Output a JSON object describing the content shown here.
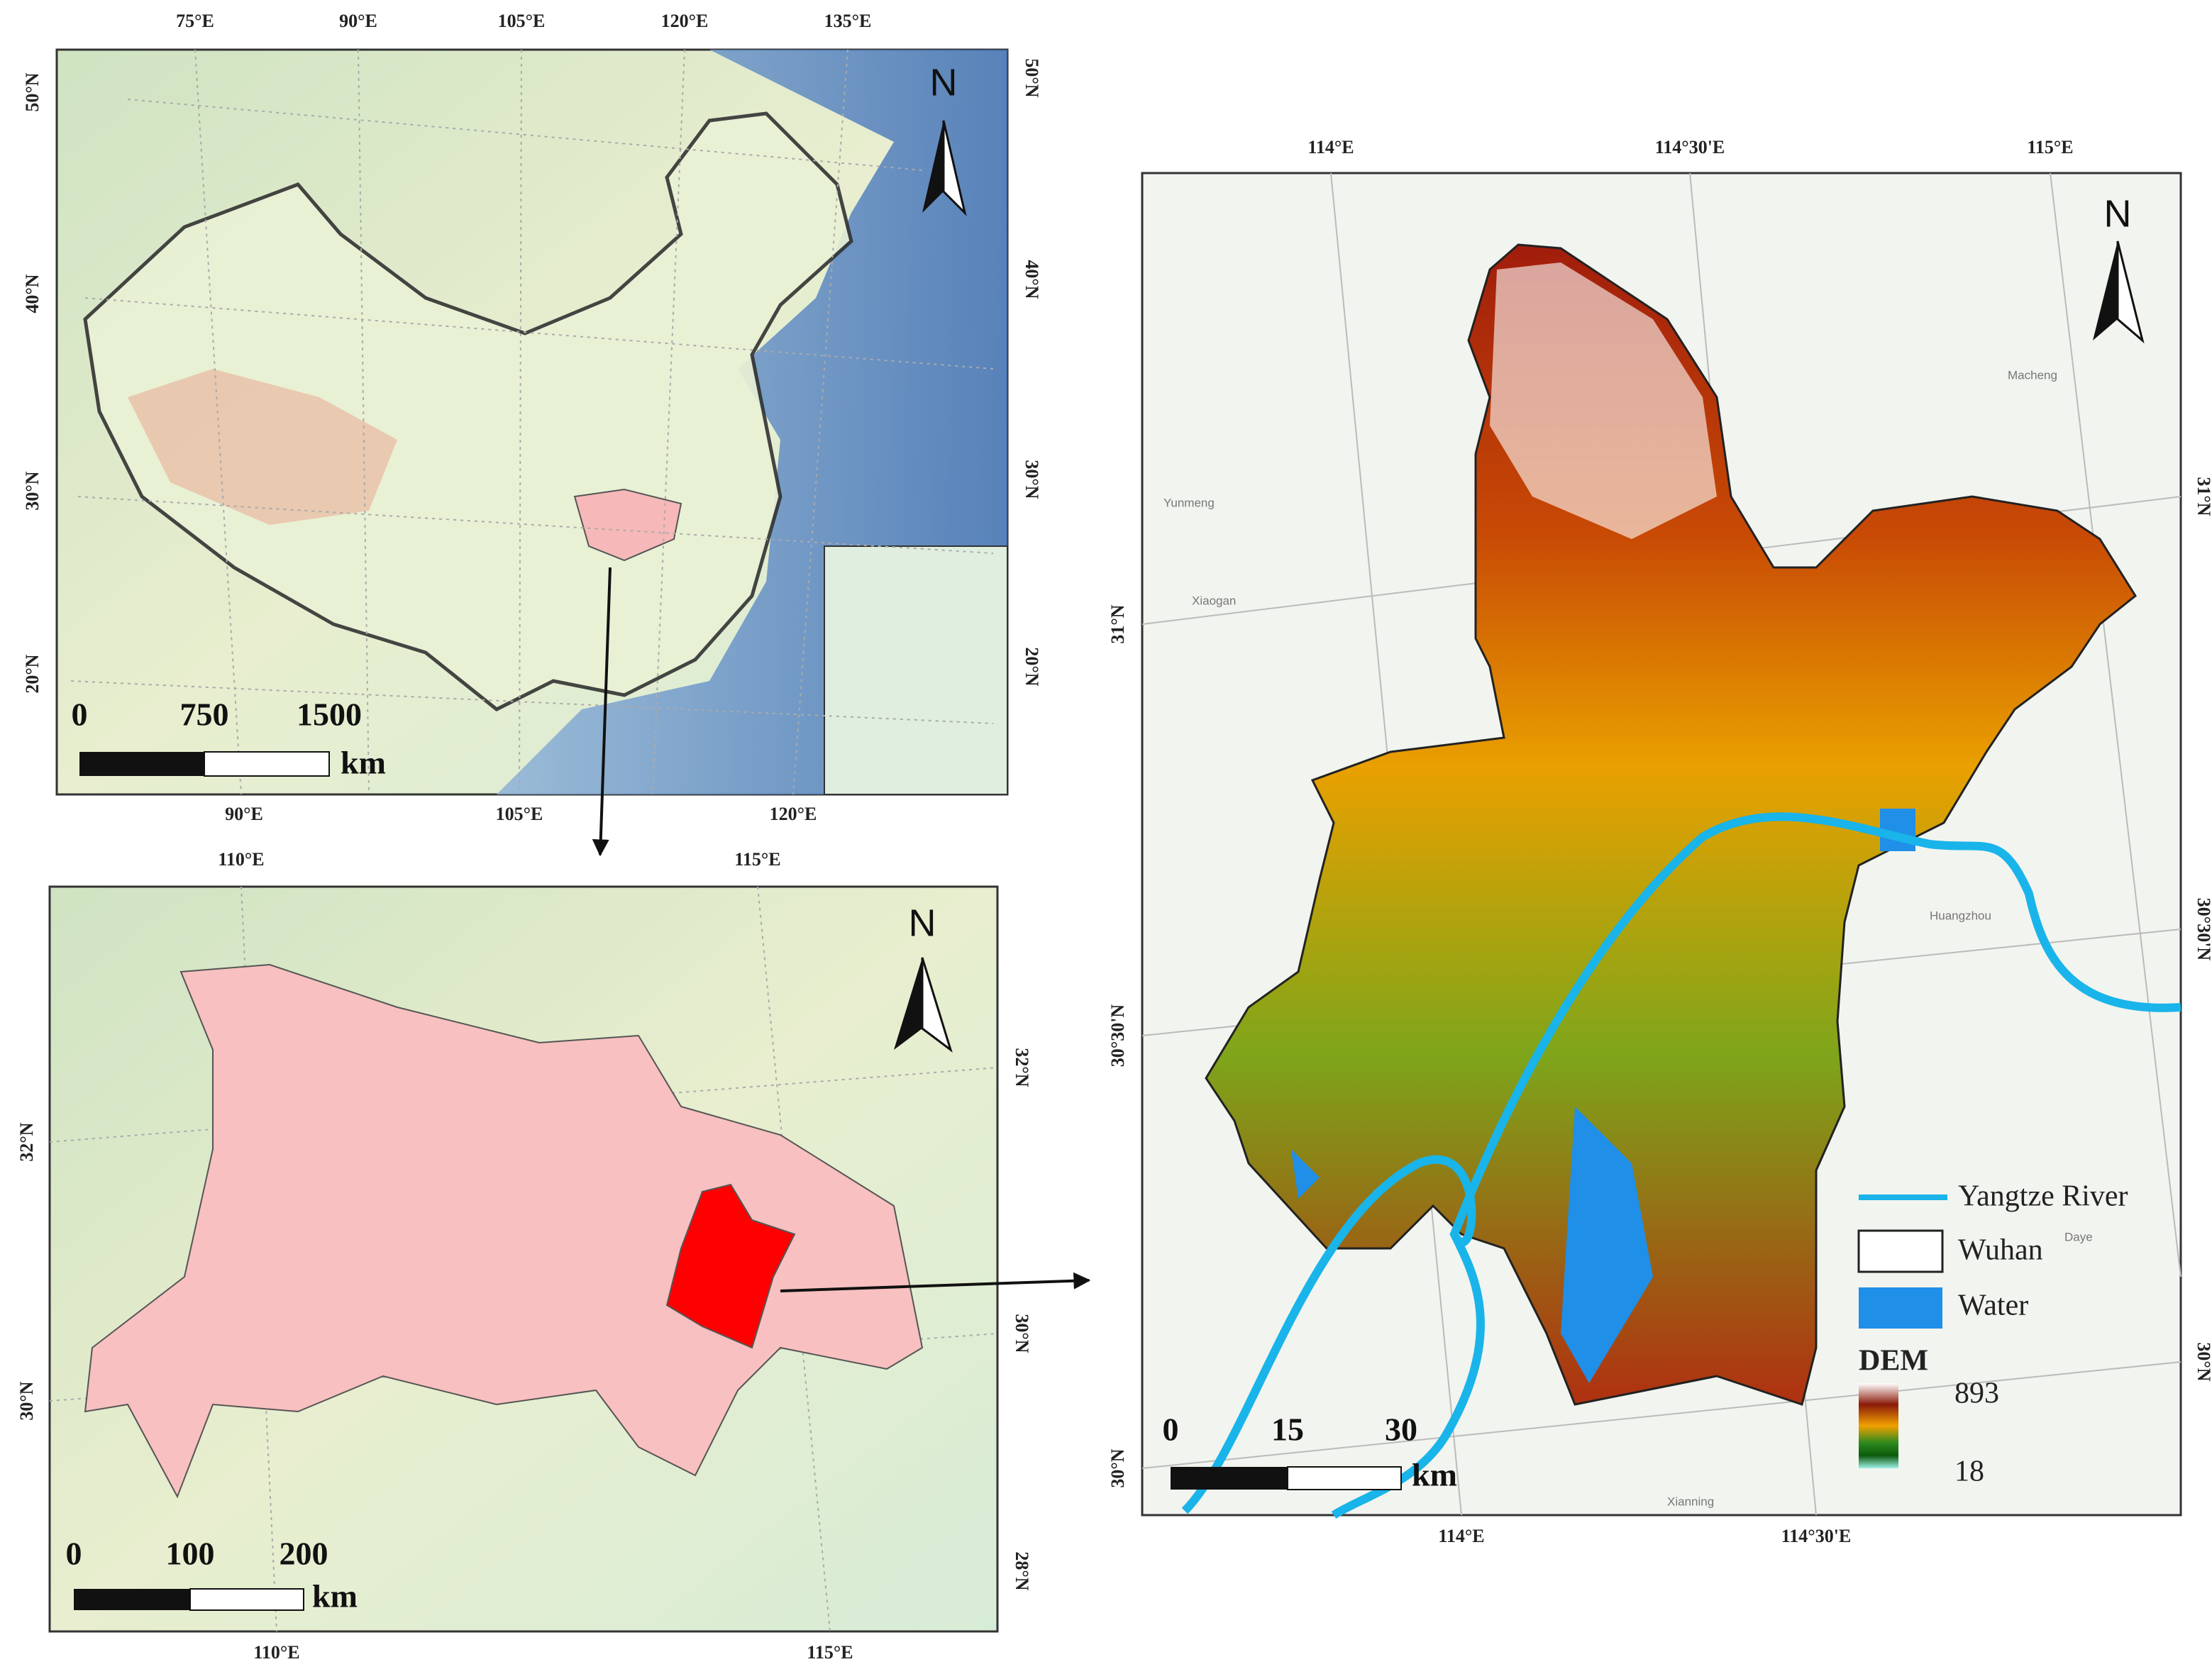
{
  "china_map": {
    "top_labels": [
      "75°E",
      "90°E",
      "105°E",
      "120°E",
      "135°E"
    ],
    "bottom_labels": [
      "90°E",
      "105°E",
      "120°E"
    ],
    "left_labels": [
      "50°N",
      "40°N",
      "30°N",
      "20°N"
    ],
    "right_labels": [
      "50°N",
      "40°N",
      "30°N",
      "20°N"
    ],
    "north": "N",
    "scale": {
      "ticks": [
        "0",
        "750",
        "1500"
      ],
      "unit": "km"
    }
  },
  "hubei_map": {
    "top_labels": [
      "110°E",
      "115°E"
    ],
    "bottom_labels": [
      "110°E",
      "115°E"
    ],
    "left_labels": [
      "32°N",
      "30°N"
    ],
    "right_labels": [
      "32°N",
      "30°N",
      "28°N"
    ],
    "north": "N",
    "scale": {
      "ticks": [
        "0",
        "100",
        "200"
      ],
      "unit": "km"
    }
  },
  "wuhan_map": {
    "top_labels": [
      "114°E",
      "114°30'E",
      "115°E"
    ],
    "bottom_labels": [
      "114°E",
      "114°30'E"
    ],
    "left_labels": [
      "31°N",
      "30°30'N",
      "30°N"
    ],
    "right_labels": [
      "31°N",
      "30°30'N",
      "30°N"
    ],
    "north": "N",
    "scale": {
      "ticks": [
        "0",
        "15",
        "30"
      ],
      "unit": "km"
    },
    "legend": {
      "river": "Yangtze River",
      "boundary": "Wuhan",
      "water": "Water",
      "dem_title": "DEM",
      "dem_max": "893",
      "dem_min": "18"
    },
    "place_names": [
      "Yunmeng",
      "Xiaogan",
      "Macheng",
      "Huangzhou",
      "Xianning",
      "Daye"
    ]
  }
}
